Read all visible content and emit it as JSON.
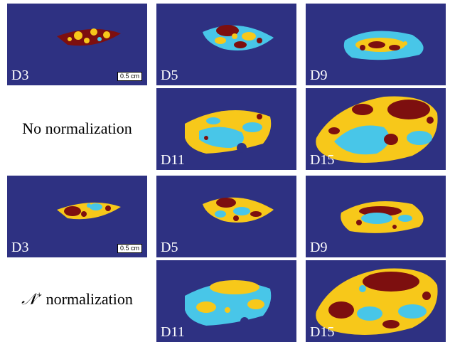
{
  "colors": {
    "background": "#2e3182",
    "cyan": "#48c6e8",
    "yellow": "#f7c81a",
    "darkred": "#7d0f0f"
  },
  "rows": [
    {
      "panels": [
        {
          "day": "D3",
          "scale": "0.5 cm"
        },
        {
          "day": "D5"
        },
        {
          "day": "D9"
        }
      ]
    },
    {
      "label": "No normalization",
      "panels": [
        {
          "day": "D11"
        },
        {
          "day": "D15"
        }
      ]
    },
    {
      "panels": [
        {
          "day": "D3",
          "scale": "0.5 cm"
        },
        {
          "day": "D5"
        },
        {
          "day": "D9"
        }
      ]
    },
    {
      "label_symbol": "𝒩",
      "label_sup": "+",
      "label_text": " normalization",
      "panels": [
        {
          "day": "D11"
        },
        {
          "day": "D15"
        }
      ]
    }
  ]
}
